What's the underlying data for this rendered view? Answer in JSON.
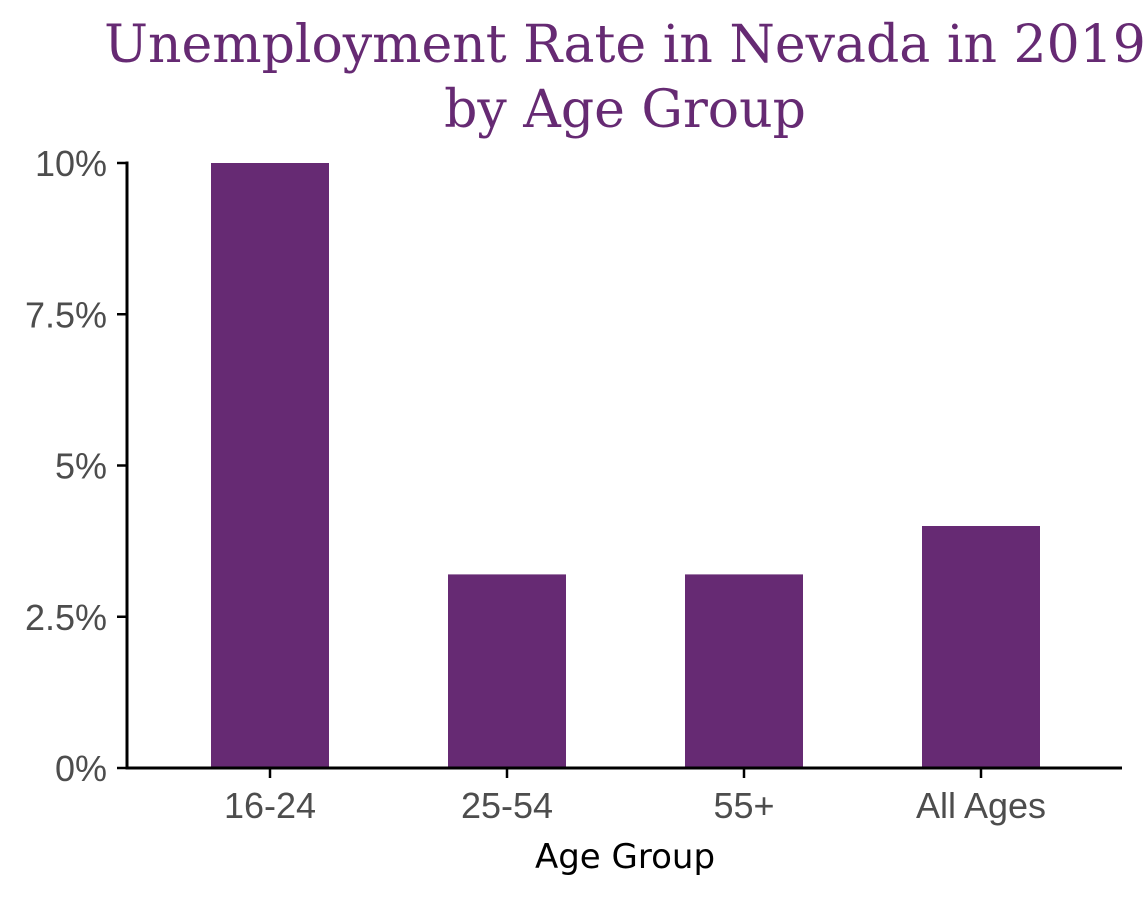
{
  "chart_data": {
    "type": "bar",
    "title_lines": [
      "Unemployment Rate in Nevada in 2019",
      "by Age Group"
    ],
    "xlabel": "Age Group",
    "ylabel": "",
    "categories": [
      "16-24",
      "25-54",
      "55+",
      "All Ages"
    ],
    "values": [
      10.0,
      3.2,
      3.2,
      4.0
    ],
    "ylim": [
      0,
      10
    ],
    "yticks": [
      0,
      2.5,
      5,
      7.5,
      10
    ],
    "ytick_labels": [
      "0%",
      "2.5%",
      "5%",
      "7.5%",
      "10%"
    ],
    "bar_color": "#662a73",
    "title_color": "#662a73",
    "grid": false,
    "legend": "none"
  }
}
